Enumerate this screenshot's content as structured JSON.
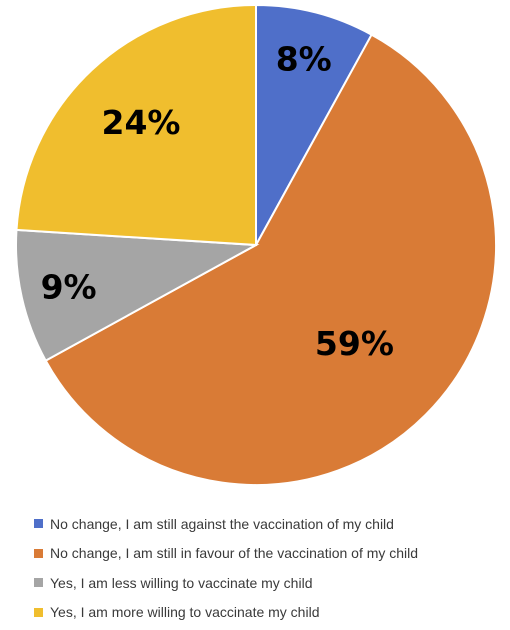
{
  "chart_data": {
    "type": "pie",
    "start_angle_deg": 0,
    "direction": "clockwise",
    "slices": [
      {
        "label": "No change, I am still against the vaccination of my child",
        "value": 8,
        "display": "8%",
        "color": "#4F6FC9"
      },
      {
        "label": "No change, I am still in favour of the vaccination of my child",
        "value": 59,
        "display": "59%",
        "color": "#D97B36"
      },
      {
        "label": "Yes, I am less willing to vaccinate my child",
        "value": 9,
        "display": "9%",
        "color": "#A5A5A5"
      },
      {
        "label": "Yes, I am more willing to vaccinate my child",
        "value": 24,
        "display": "24%",
        "color": "#F0BE2E"
      }
    ],
    "legend_position": "bottom",
    "slice_border_color": "#ffffff"
  }
}
